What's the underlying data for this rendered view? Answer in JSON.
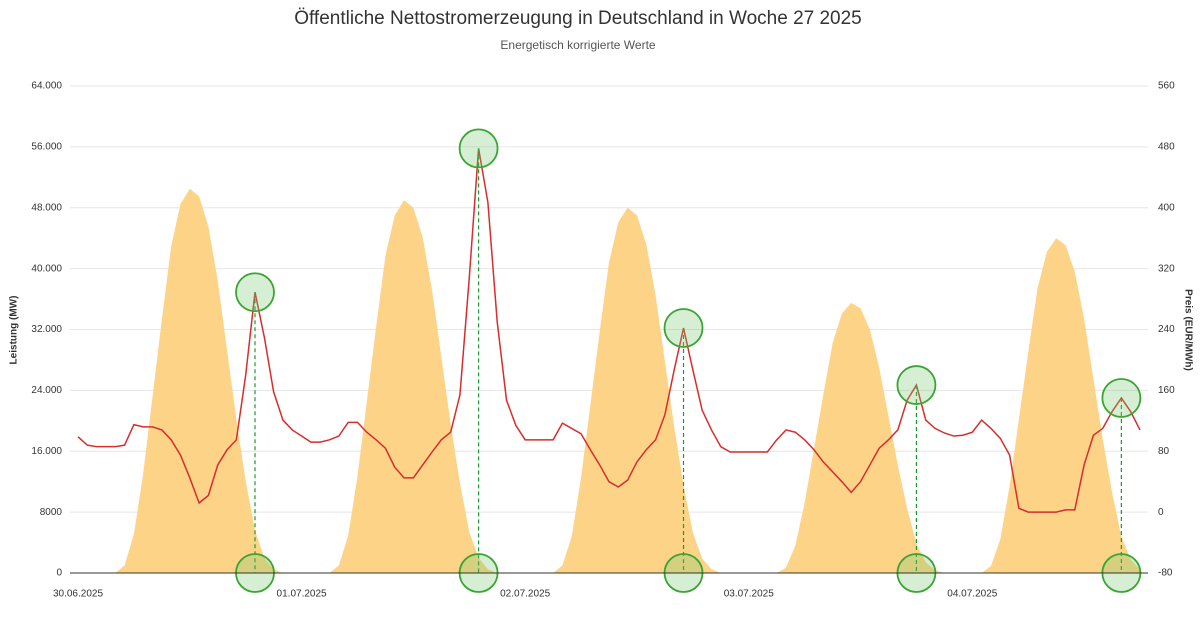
{
  "chart_data": {
    "type": "area-line",
    "title": "Öffentliche Nettostromerzeugung in Deutschland in Woche 27 2025",
    "subtitle": "Energetisch korrigierte Werte",
    "ylabel": "Leistung (MW)",
    "y2label": "Preis (EUR/MWh)",
    "categories": [
      "30.06.2025",
      null,
      null,
      null,
      null,
      null,
      null,
      null,
      null,
      null,
      null,
      null,
      null,
      null,
      null,
      null,
      null,
      null,
      null,
      null,
      null,
      null,
      null,
      null,
      "01.07.2025",
      null,
      null,
      null,
      null,
      null,
      null,
      null,
      null,
      null,
      null,
      null,
      null,
      null,
      null,
      null,
      null,
      null,
      null,
      null,
      null,
      null,
      null,
      null,
      "02.07.2025",
      null,
      null,
      null,
      null,
      null,
      null,
      null,
      null,
      null,
      null,
      null,
      null,
      null,
      null,
      null,
      null,
      null,
      null,
      null,
      null,
      null,
      null,
      null,
      "03.07.2025",
      null,
      null,
      null,
      null,
      null,
      null,
      null,
      null,
      null,
      null,
      null,
      null,
      null,
      null,
      null,
      null,
      null,
      null,
      null,
      null,
      null,
      null,
      null,
      "04.07.2025",
      null,
      null,
      null,
      null,
      null,
      null,
      null,
      null,
      null,
      null,
      null,
      null,
      null,
      null,
      null,
      null,
      null,
      null
    ],
    "series": [
      {
        "color": "#fdd281",
        "values": [
          0,
          0,
          0,
          0,
          0,
          1000,
          5100,
          13100,
          23200,
          33300,
          42900,
          48500,
          50500,
          49500,
          45500,
          38400,
          29300,
          20200,
          12100,
          5600,
          2000,
          500,
          0,
          0,
          0,
          0,
          0,
          0,
          1000,
          4900,
          12700,
          22500,
          32300,
          41700,
          47000,
          49000,
          48000,
          44100,
          37200,
          28400,
          19600,
          11800,
          5400,
          2000,
          500,
          0,
          0,
          0,
          0,
          0,
          0,
          0,
          1000,
          4800,
          12500,
          22100,
          31700,
          40800,
          46100,
          48000,
          47000,
          43200,
          36500,
          27800,
          19200,
          11500,
          5300,
          1900,
          500,
          0,
          0,
          0,
          0,
          0,
          0,
          0,
          700,
          3600,
          9200,
          16300,
          23400,
          30200,
          34100,
          35500,
          34800,
          32000,
          27000,
          20600,
          14200,
          8500,
          3900,
          1400,
          400,
          0,
          0,
          0,
          0,
          0,
          900,
          4400,
          11400,
          20200,
          29000,
          37400,
          42200,
          44000,
          43100,
          39600,
          33400,
          25500,
          17600,
          10600,
          4800,
          1800,
          400
        ]
      },
      {
        "color": "#d62d2d",
        "axis": "y2",
        "values": [
          99,
          88,
          86,
          86,
          86,
          88,
          115,
          112,
          112,
          108,
          95,
          75,
          45,
          12,
          22,
          62,
          82,
          95,
          180,
          289,
          230,
          158,
          121,
          108,
          100,
          92,
          92,
          95,
          100,
          118,
          118,
          105,
          95,
          84,
          59,
          45,
          45,
          62,
          79,
          95,
          105,
          154,
          308,
          478,
          407,
          250,
          147,
          114,
          95,
          95,
          95,
          95,
          117,
          110,
          103,
          82,
          62,
          40,
          33,
          42,
          66,
          82,
          95,
          128,
          187,
          242,
          187,
          134,
          108,
          86,
          79,
          79,
          79,
          79,
          79,
          95,
          108,
          105,
          95,
          82,
          66,
          53,
          40,
          26,
          40,
          62,
          84,
          95,
          108,
          147,
          167,
          121,
          110,
          104,
          100,
          101,
          105,
          121,
          110,
          97,
          75,
          5,
          0,
          0,
          0,
          0,
          3,
          3,
          62,
          101,
          110,
          132,
          150,
          132,
          108
        ]
      }
    ],
    "ylim": [
      0,
      64000
    ],
    "yticks": [
      0,
      8000,
      {
        "value": 16000,
        "label": "16.000"
      },
      {
        "value": 24000,
        "label": "24.000"
      },
      {
        "value": 32000,
        "label": "32.000"
      },
      {
        "value": 40000,
        "label": "40.000"
      },
      {
        "value": 48000,
        "label": "48.000"
      },
      {
        "value": 56000,
        "label": "56.000"
      },
      {
        "value": 64000,
        "label": "64.000"
      }
    ],
    "y2lim": [
      -80,
      560
    ],
    "y2ticks": [
      -80,
      0,
      80,
      160,
      240,
      320,
      400,
      480,
      560
    ],
    "grid": true
  }
}
